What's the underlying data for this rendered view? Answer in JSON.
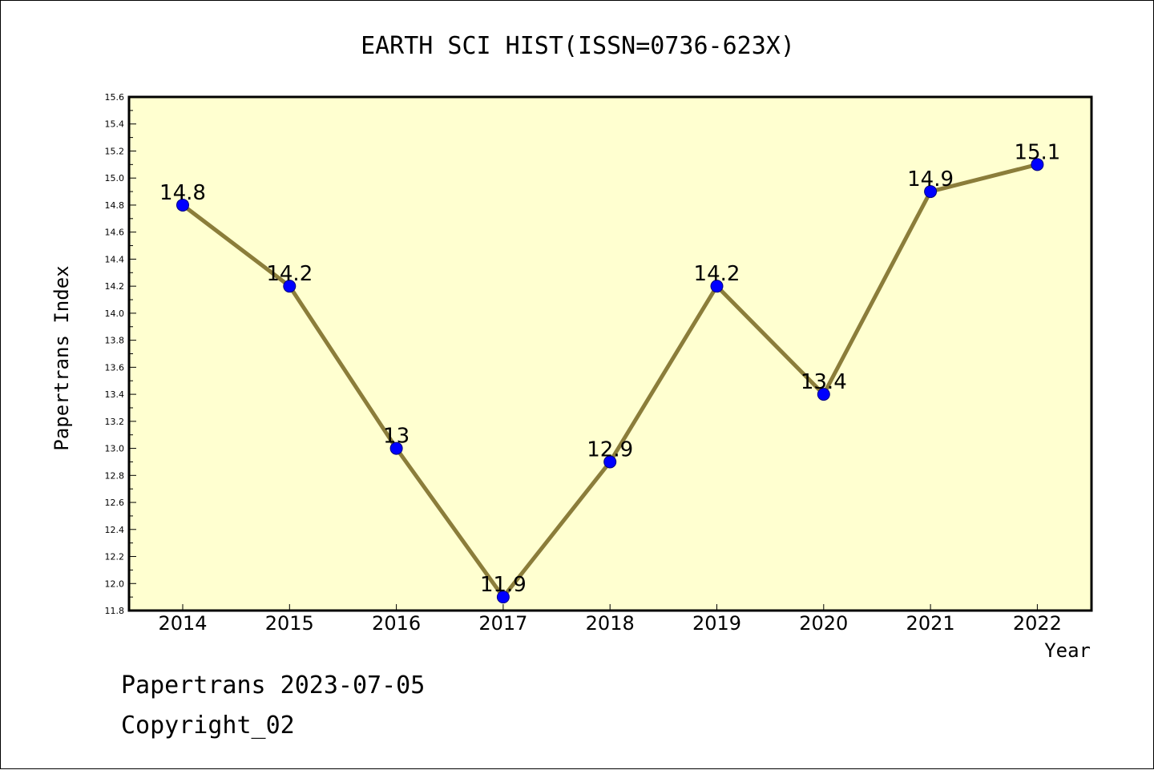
{
  "chart_data": {
    "type": "line",
    "title": "EARTH SCI HIST(ISSN=0736-623X)",
    "xlabel": "Year",
    "ylabel": "Papertrans Index",
    "categories": [
      "2014",
      "2015",
      "2016",
      "2017",
      "2018",
      "2019",
      "2020",
      "2021",
      "2022"
    ],
    "series": [
      {
        "values": [
          14.8,
          14.2,
          13,
          11.9,
          12.9,
          14.2,
          13.4,
          14.9,
          15.1
        ],
        "labels": [
          "14.8",
          "14.2",
          "13",
          "11.9",
          "12.9",
          "14.2",
          "13.4",
          "14.9",
          "15.1"
        ]
      }
    ],
    "ylim": [
      11.8,
      15.6
    ],
    "yticks": [
      "11.8",
      "12.0",
      "12.2",
      "12.4",
      "12.6",
      "12.8",
      "13.0",
      "13.2",
      "13.4",
      "13.6",
      "13.8",
      "14.0",
      "14.2",
      "14.4",
      "14.6",
      "14.8",
      "15.0",
      "15.2",
      "15.4",
      "15.6"
    ],
    "grid": false,
    "legend": "none",
    "colors": {
      "plot_background": "#ffffd0",
      "line": "#8b7d3a",
      "marker": "#0000ff",
      "marker_edge": "#000080"
    }
  },
  "footer": {
    "line1": "Papertrans 2023-07-05",
    "line2": "Copyright_02"
  }
}
